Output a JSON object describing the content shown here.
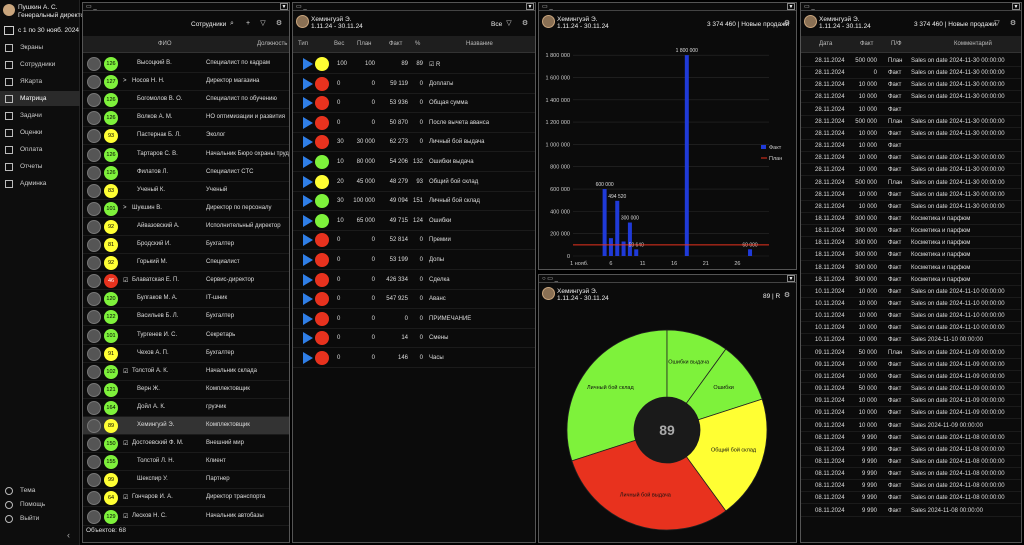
{
  "user": {
    "name": "Пушкин А. С.",
    "role": "Генеральный директор"
  },
  "period": "с 1 по 30 нояб. 2024",
  "nav": {
    "items": [
      "Экраны",
      "Сотрудники",
      "ЯКарта",
      "Матрица",
      "Задачи",
      "Оценки",
      "Оплата",
      "Отчеты",
      "Админка"
    ],
    "bottom": [
      "Тема",
      "Помощь",
      "Выйти"
    ]
  },
  "colors": {
    "green": "#7ef23b",
    "yellow": "#ffff33",
    "red": "#e8321e",
    "blue": "#2f7ee6"
  },
  "emp": {
    "title": "Сотрудники",
    "cols": [
      "ФИО",
      "Должность"
    ],
    "footer": "Объектов: 68",
    "rows": [
      {
        "score": "126",
        "c": "green",
        "name": "Высоцкий В.",
        "pos": "Специалист по кадрам",
        "mark": ""
      },
      {
        "score": "127",
        "c": "green",
        "name": "Носов Н. Н.",
        "pos": "Директор магазина",
        "mark": ">"
      },
      {
        "score": "126",
        "c": "green",
        "name": "Богомолов В. О.",
        "pos": "Специалист по обучению",
        "mark": ""
      },
      {
        "score": "126",
        "c": "green",
        "name": "Волков А. М.",
        "pos": "НО оптимизации и развития",
        "mark": ""
      },
      {
        "score": "93",
        "c": "yellow",
        "name": "Пастернак Б. Л.",
        "pos": "Эколог",
        "mark": ""
      },
      {
        "score": "126",
        "c": "green",
        "name": "Тартаров С. В.",
        "pos": "Начальник Бюро охраны труд",
        "mark": ""
      },
      {
        "score": "126",
        "c": "green",
        "name": "Филатов Л.",
        "pos": "Специалист СТС",
        "mark": ""
      },
      {
        "score": "83",
        "c": "yellow",
        "name": "Ученый К.",
        "pos": "Ученый",
        "mark": ""
      },
      {
        "score": "101",
        "c": "green",
        "name": "Шукшин В.",
        "pos": "Директор по персоналу",
        "mark": ">"
      },
      {
        "score": "92",
        "c": "yellow",
        "name": "Айвазовский А.",
        "pos": "Исполнительный директор",
        "mark": ""
      },
      {
        "score": "81",
        "c": "yellow",
        "name": "Бродский И.",
        "pos": "Бухгалтер",
        "mark": ""
      },
      {
        "score": "92",
        "c": "yellow",
        "name": "Горький М.",
        "pos": "Специалист",
        "mark": ""
      },
      {
        "score": "46",
        "c": "red",
        "name": "Блаватская Е. П.",
        "pos": "Сервис-директор",
        "mark": "☑"
      },
      {
        "score": "120",
        "c": "green",
        "name": "Булгаков М. А.",
        "pos": "IT-шник",
        "mark": ""
      },
      {
        "score": "122",
        "c": "green",
        "name": "Васильев Б. Л.",
        "pos": "Бухгалтер",
        "mark": ""
      },
      {
        "score": "101",
        "c": "green",
        "name": "Тургенев И. С.",
        "pos": "Секретарь",
        "mark": ""
      },
      {
        "score": "91",
        "c": "yellow",
        "name": "Чехов А. П.",
        "pos": "Бухгалтер",
        "mark": ""
      },
      {
        "score": "102",
        "c": "green",
        "name": "Толстой А. К.",
        "pos": "Начальник склада",
        "mark": "☑"
      },
      {
        "score": "121",
        "c": "green",
        "name": "Верн Ж.",
        "pos": "Комплектовщик",
        "mark": ""
      },
      {
        "score": "164",
        "c": "green",
        "name": "Дойл А. К.",
        "pos": "грузчик",
        "mark": ""
      },
      {
        "score": "89",
        "c": "yellow",
        "name": "Хемингуэй Э.",
        "pos": "Комплектовщик",
        "mark": ""
      },
      {
        "score": "150",
        "c": "green",
        "name": "Достоевский Ф. М.",
        "pos": "Внешний мир",
        "mark": "☑"
      },
      {
        "score": "155",
        "c": "green",
        "name": "Толстой Л. Н.",
        "pos": "Клиент",
        "mark": ""
      },
      {
        "score": "99",
        "c": "yellow",
        "name": "Шекспир У.",
        "pos": "Партнер",
        "mark": ""
      },
      {
        "score": "64",
        "c": "yellow",
        "name": "Гончаров И. А.",
        "pos": "Директор транспорта",
        "mark": "☑"
      },
      {
        "score": "129",
        "c": "green",
        "name": "Лесков Н. С.",
        "pos": "Начальник автобазы",
        "mark": "☑"
      }
    ]
  },
  "person": {
    "name": "Хемингуэй Э.",
    "dates": "1.11.24 - 30.11.24"
  },
  "kpi": {
    "filter": "Все",
    "cols": [
      "Тип",
      "Вес",
      "План",
      "Факт",
      "%",
      "Название"
    ],
    "rows": [
      {
        "c": "yellow",
        "w": "100",
        "plan": "100",
        "fact": "89",
        "pct": "89",
        "name": "☑ R"
      },
      {
        "c": "red",
        "w": "0",
        "plan": "0",
        "fact": "59 119",
        "pct": "0",
        "name": "Доплаты"
      },
      {
        "c": "red",
        "w": "0",
        "plan": "0",
        "fact": "53 936",
        "pct": "0",
        "name": "Общая сумма"
      },
      {
        "c": "red",
        "w": "0",
        "plan": "0",
        "fact": "50 870",
        "pct": "0",
        "name": "После вычета аванса"
      },
      {
        "c": "red",
        "w": "30",
        "plan": "30 000",
        "fact": "62 273",
        "pct": "0",
        "name": "Личный бой выдача"
      },
      {
        "c": "green",
        "w": "10",
        "plan": "80 000",
        "fact": "54 206",
        "pct": "132",
        "name": "Ошибки выдача"
      },
      {
        "c": "yellow",
        "w": "20",
        "plan": "45 000",
        "fact": "48 279",
        "pct": "93",
        "name": "Общий бой склад"
      },
      {
        "c": "green",
        "w": "30",
        "plan": "100 000",
        "fact": "49 094",
        "pct": "151",
        "name": "Личный бой склад"
      },
      {
        "c": "green",
        "w": "10",
        "plan": "65 000",
        "fact": "49 715",
        "pct": "124",
        "name": "Ошибки"
      },
      {
        "c": "red",
        "w": "0",
        "plan": "0",
        "fact": "52 814",
        "pct": "0",
        "name": "Премии"
      },
      {
        "c": "red",
        "w": "0",
        "plan": "0",
        "fact": "53 199",
        "pct": "0",
        "name": "Допы"
      },
      {
        "c": "red",
        "w": "0",
        "plan": "0",
        "fact": "426 334",
        "pct": "0",
        "name": "Сделка"
      },
      {
        "c": "red",
        "w": "0",
        "plan": "0",
        "fact": "547 925",
        "pct": "0",
        "name": "Аванс"
      },
      {
        "c": "red",
        "w": "0",
        "plan": "0",
        "fact": "0",
        "pct": "0",
        "name": "ПРИМЕЧАНИЕ"
      },
      {
        "c": "red",
        "w": "0",
        "plan": "0",
        "fact": "14",
        "pct": "0",
        "name": "Смены"
      },
      {
        "c": "red",
        "w": "0",
        "plan": "0",
        "fact": "146",
        "pct": "0",
        "name": "Часы"
      }
    ]
  },
  "sales": {
    "header": "3 374 460 | Новые продажи"
  },
  "chart_data": [
    {
      "type": "bar",
      "x": [
        1,
        2,
        3,
        4,
        5,
        6,
        7,
        8,
        9,
        10,
        11,
        12,
        13,
        14,
        15,
        16,
        17,
        18,
        19,
        20,
        21,
        22,
        23,
        24,
        25,
        26,
        27,
        28,
        29,
        30
      ],
      "series": [
        {
          "name": "Факт",
          "values": [
            0,
            0,
            0,
            0,
            600000,
            160000,
            494520,
            130000,
            300000,
            59640,
            0,
            0,
            0,
            0,
            0,
            0,
            0,
            1800000,
            0,
            0,
            0,
            0,
            0,
            0,
            0,
            0,
            0,
            60000,
            0,
            0
          ]
        },
        {
          "name": "План",
          "values": [
            100000,
            100000,
            100000,
            100000,
            100000,
            100000,
            100000,
            100000,
            100000,
            100000,
            100000,
            100000,
            100000,
            100000,
            100000,
            100000,
            100000,
            100000,
            100000,
            100000,
            100000,
            100000,
            100000,
            100000,
            100000,
            100000,
            100000,
            100000,
            100000,
            100000
          ]
        }
      ],
      "yticks": [
        "0",
        "200 000",
        "400 000",
        "600 000",
        "800 000",
        "1 000 000",
        "1 200 000",
        "1 400 000",
        "1 600 000",
        "1 800 000"
      ],
      "xticks": [
        "1 нояб.",
        "6",
        "11",
        "16",
        "21",
        "26"
      ],
      "ylim": [
        0,
        1900000
      ],
      "labels": [
        "600 000",
        "494 520",
        "300 000",
        "59 640",
        "1 800 000",
        "60 000"
      ],
      "legend": "right"
    },
    {
      "type": "pie",
      "center_value": "89",
      "header": "89 | R",
      "slices": [
        {
          "label": "Личный бой склад",
          "value": 30,
          "color": "#7ef23b"
        },
        {
          "label": "Ошибки выдача",
          "value": 10,
          "color": "#7ef23b"
        },
        {
          "label": "Ошибки",
          "value": 10,
          "color": "#7ef23b"
        },
        {
          "label": "Общий бой склад",
          "value": 20,
          "color": "#ffff33"
        },
        {
          "label": "Личный бой выдача",
          "value": 30,
          "color": "#e8321e"
        }
      ]
    }
  ],
  "table": {
    "header": "3 374 460 | Новые продажи",
    "cols": [
      "Дата",
      "Факт",
      "П/Ф",
      "Комментарий"
    ],
    "rows": [
      [
        "28.11.2024",
        "500 000",
        "План",
        "Sales on date 2024-11-30 00:00:00"
      ],
      [
        "28.11.2024",
        "0",
        "Факт",
        "Sales on date 2024-11-30 00:00:00"
      ],
      [
        "28.11.2024",
        "10 000",
        "Факт",
        "Sales on date 2024-11-30 00:00:00"
      ],
      [
        "28.11.2024",
        "10 000",
        "Факт",
        "Sales on date 2024-11-30 00:00:00"
      ],
      [
        "28.11.2024",
        "10 000",
        "Факт",
        ""
      ],
      [
        "28.11.2024",
        "500 000",
        "План",
        "Sales on date 2024-11-30 00:00:00"
      ],
      [
        "28.11.2024",
        "10 000",
        "Факт",
        "Sales on date 2024-11-30 00:00:00"
      ],
      [
        "28.11.2024",
        "10 000",
        "Факт",
        ""
      ],
      [
        "28.11.2024",
        "10 000",
        "Факт",
        "Sales on date 2024-11-30 00:00:00"
      ],
      [
        "28.11.2024",
        "10 000",
        "Факт",
        "Sales on date 2024-11-30 00:00:00"
      ],
      [
        "28.11.2024",
        "500 000",
        "План",
        "Sales on date 2024-11-30 00:00:00"
      ],
      [
        "28.11.2024",
        "10 000",
        "Факт",
        "Sales on date 2024-11-30 00:00:00"
      ],
      [
        "28.11.2024",
        "10 000",
        "Факт",
        "Sales on date 2024-11-30 00:00:00"
      ],
      [
        "18.11.2024",
        "300 000",
        "Факт",
        "Косметика и парфюм"
      ],
      [
        "18.11.2024",
        "300 000",
        "Факт",
        "Косметика и парфюм"
      ],
      [
        "18.11.2024",
        "300 000",
        "Факт",
        "Косметика и парфюм"
      ],
      [
        "18.11.2024",
        "300 000",
        "Факт",
        "Косметика и парфюм"
      ],
      [
        "18.11.2024",
        "300 000",
        "Факт",
        "Косметика и парфюм"
      ],
      [
        "18.11.2024",
        "300 000",
        "Факт",
        "Косметика и парфюм"
      ],
      [
        "10.11.2024",
        "10 000",
        "Факт",
        "Sales on date 2024-11-10 00:00:00"
      ],
      [
        "10.11.2024",
        "10 000",
        "Факт",
        "Sales on date 2024-11-10 00:00:00"
      ],
      [
        "10.11.2024",
        "10 000",
        "Факт",
        "Sales on date 2024-11-10 00:00:00"
      ],
      [
        "10.11.2024",
        "10 000",
        "Факт",
        "Sales on date 2024-11-10 00:00:00"
      ],
      [
        "10.11.2024",
        "10 000",
        "Факт",
        "Sales 2024-11-10 00:00:00"
      ],
      [
        "09.11.2024",
        "50 000",
        "План",
        "Sales on date 2024-11-09 00:00:00"
      ],
      [
        "09.11.2024",
        "10 000",
        "Факт",
        "Sales on date 2024-11-09 00:00:00"
      ],
      [
        "09.11.2024",
        "10 000",
        "Факт",
        "Sales on date 2024-11-09 00:00:00"
      ],
      [
        "09.11.2024",
        "50 000",
        "Факт",
        "Sales on date 2024-11-09 00:00:00"
      ],
      [
        "09.11.2024",
        "10 000",
        "Факт",
        "Sales on date 2024-11-09 00:00:00"
      ],
      [
        "09.11.2024",
        "10 000",
        "Факт",
        "Sales on date 2024-11-09 00:00:00"
      ],
      [
        "09.11.2024",
        "10 000",
        "Факт",
        "Sales 2024-11-09 00:00:00"
      ],
      [
        "08.11.2024",
        "9 990",
        "Факт",
        "Sales on date 2024-11-08 00:00:00"
      ],
      [
        "08.11.2024",
        "9 990",
        "Факт",
        "Sales on date 2024-11-08 00:00:00"
      ],
      [
        "08.11.2024",
        "9 990",
        "Факт",
        "Sales on date 2024-11-08 00:00:00"
      ],
      [
        "08.11.2024",
        "9 990",
        "Факт",
        "Sales on date 2024-11-08 00:00:00"
      ],
      [
        "08.11.2024",
        "9 990",
        "Факт",
        "Sales on date 2024-11-08 00:00:00"
      ],
      [
        "08.11.2024",
        "9 990",
        "Факт",
        "Sales on date 2024-11-08 00:00:00"
      ],
      [
        "08.11.2024",
        "9 990",
        "Факт",
        "Sales 2024-11-08 00:00:00"
      ]
    ]
  }
}
